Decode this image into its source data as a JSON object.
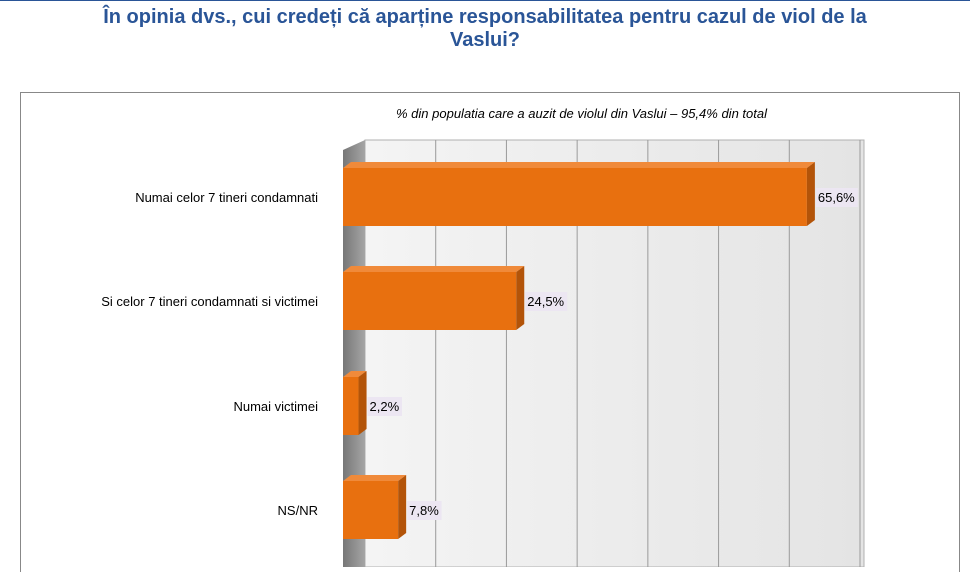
{
  "title": {
    "line1": "În opinia dvs., cui credeți că aparține responsabilitatea pentru cazul de viol de la",
    "line2": "Vaslui?"
  },
  "colors": {
    "title": "#2a5597",
    "bar_front": "#e8700f",
    "bar_side": "#b35409",
    "bar_top": "#f08a3a",
    "value_label_bg": "#ece6f2",
    "grid": "#9a9a9a",
    "floor": "#c8c8c8"
  },
  "chart_data": {
    "type": "bar",
    "orientation": "horizontal",
    "subtitle": "% din populatia care a auzit de violul din Vaslui – 95,4% din total",
    "categories": [
      "Numai celor 7 tineri condamnati",
      "Si celor 7 tineri condamnati si victimei",
      "Numai victimei",
      "NS/NR"
    ],
    "values": [
      65.6,
      24.5,
      2.2,
      7.8
    ],
    "value_labels": [
      "65,6%",
      "24,5%",
      "2,2%",
      "7,8%"
    ],
    "xlim": [
      0,
      70
    ],
    "gridlines": 7,
    "xlabel": "",
    "ylabel": ""
  }
}
